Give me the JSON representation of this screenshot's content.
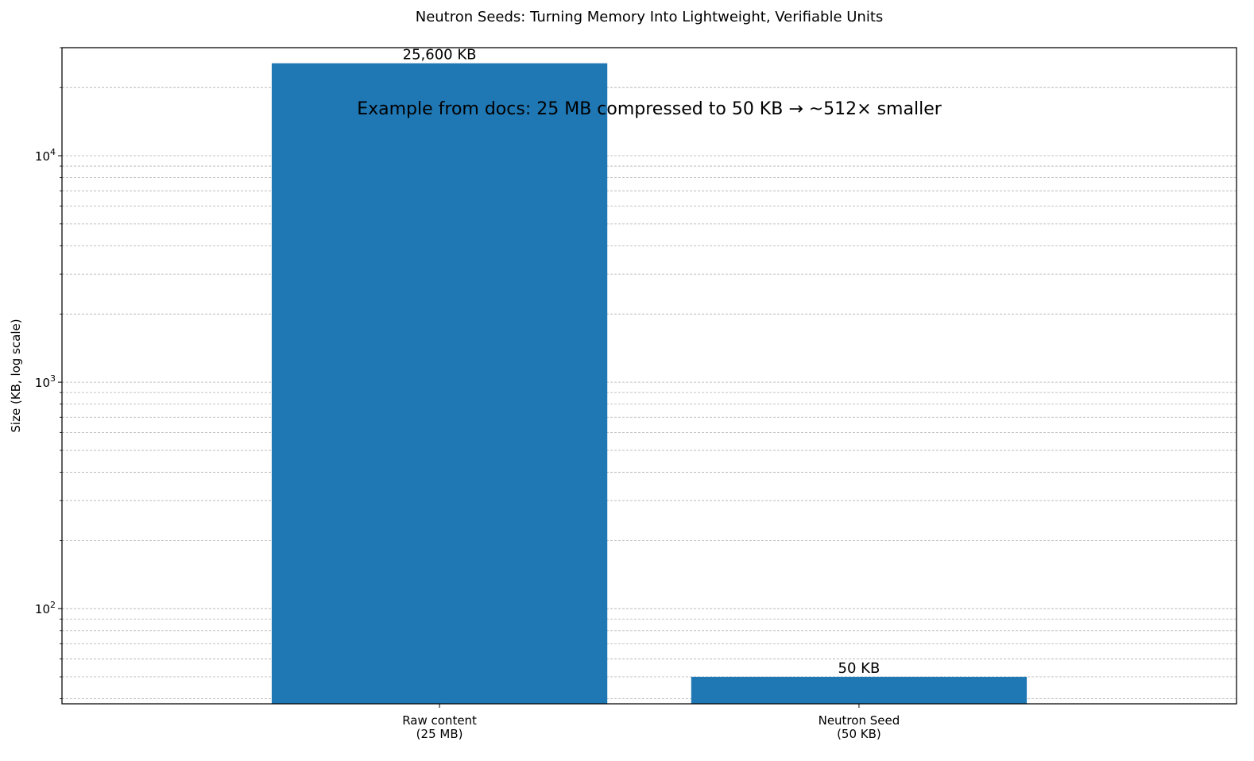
{
  "chart_data": {
    "type": "bar",
    "title": "Neutron Seeds: Turning Memory Into Lightweight, Verifiable Units",
    "xlabel": "",
    "ylabel": "Size (KB, log scale)",
    "y_scale": "log",
    "ylim": [
      38,
      30000
    ],
    "grid": "y-axis, major and minor, dashed",
    "categories": [
      [
        "Raw content",
        "(25 MB)"
      ],
      [
        "Neutron Seed",
        "(50 KB)"
      ]
    ],
    "values": [
      25600,
      50
    ],
    "bar_labels": [
      "25,600 KB",
      "50 KB"
    ],
    "bar_color": "#1f77b4",
    "y_major_ticks": [
      {
        "value": 100,
        "base": "10",
        "exp": "2"
      },
      {
        "value": 1000,
        "base": "10",
        "exp": "3"
      },
      {
        "value": 10000,
        "base": "10",
        "exp": "4"
      }
    ],
    "annotation": "Example from docs: 25 MB compressed to 50 KB  →  ~512× smaller"
  }
}
